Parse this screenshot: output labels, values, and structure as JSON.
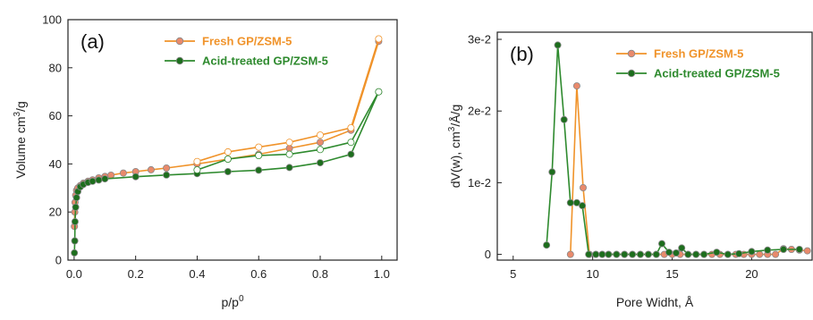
{
  "chart_data": [
    {
      "type": "scatter",
      "panel_label": "(a)",
      "xlabel": "p/p",
      "xlabel_sup": "0",
      "ylabel": "Volume cm",
      "ylabel_sup": "3",
      "ylabel_tail": "/g",
      "xlim": [
        -0.02,
        1.05
      ],
      "ylim": [
        0,
        100
      ],
      "xticks": [
        "0.0",
        "0.2",
        "0.4",
        "0.6",
        "0.8",
        "1.0"
      ],
      "xtick_values": [
        0.0,
        0.2,
        0.4,
        0.6,
        0.8,
        1.0
      ],
      "yticks": [
        "0",
        "20",
        "40",
        "60",
        "80",
        "100"
      ],
      "ytick_values": [
        0,
        20,
        40,
        60,
        80,
        100
      ],
      "legend_position": "top-right",
      "series": [
        {
          "name": "Fresh GP/ZSM-5",
          "color": "#f0932a",
          "marker_fill": "#e98a6c",
          "adsorption": {
            "x": [
              0.001,
              0.002,
              0.003,
              0.005,
              0.008,
              0.012,
              0.02,
              0.03,
              0.045,
              0.06,
              0.08,
              0.1,
              0.12,
              0.16,
              0.2,
              0.25,
              0.3,
              0.4,
              0.5,
              0.6,
              0.7,
              0.8,
              0.9,
              0.99
            ],
            "y": [
              14,
              20,
              24,
              27,
              29,
              30,
              31,
              32,
              32.8,
              33.4,
              34.2,
              34.8,
              35.3,
              36.2,
              36.8,
              37.6,
              38.3,
              40,
              42,
              44,
              46.5,
              49,
              54,
              91
            ]
          },
          "desorption": {
            "x": [
              0.99,
              0.9,
              0.8,
              0.7,
              0.6,
              0.5,
              0.4
            ],
            "y": [
              92,
              55,
              52,
              49,
              47,
              45,
              41
            ]
          }
        },
        {
          "name": "Acid-treated GP/ZSM-5",
          "color": "#2e8a2e",
          "marker_fill": "#1d6e1d",
          "adsorption": {
            "x": [
              0.001,
              0.002,
              0.003,
              0.005,
              0.008,
              0.012,
              0.02,
              0.03,
              0.045,
              0.06,
              0.08,
              0.1,
              0.2,
              0.3,
              0.4,
              0.5,
              0.6,
              0.7,
              0.8,
              0.9,
              0.99
            ],
            "y": [
              3,
              8,
              16,
              22,
              26,
              28.5,
              30.5,
              31.5,
              32.3,
              32.8,
              33.3,
              33.8,
              34.7,
              35.4,
              36,
              36.8,
              37.4,
              38.5,
              40.5,
              44,
              70
            ]
          },
          "desorption": {
            "x": [
              0.99,
              0.9,
              0.8,
              0.7,
              0.6,
              0.5,
              0.4
            ],
            "y": [
              70,
              49,
              46,
              44,
              43.5,
              42,
              37.5
            ]
          }
        }
      ]
    },
    {
      "type": "line",
      "panel_label": "(b)",
      "xlabel": "Pore Widht, Å",
      "ylabel": "dV(w), cm",
      "ylabel_sup": "3",
      "ylabel_tail": "/Å/g",
      "xlim": [
        4,
        23.8
      ],
      "ylim": [
        -0.0008,
        0.031
      ],
      "xticks": [
        "5",
        "10",
        "15",
        "20"
      ],
      "xtick_values": [
        5,
        10,
        15,
        20
      ],
      "yticks": [
        "0",
        "1e-2",
        "2e-2",
        "3e-2"
      ],
      "ytick_values": [
        0,
        0.01,
        0.02,
        0.03
      ],
      "legend_position": "top-right",
      "series": [
        {
          "name": "Fresh GP/ZSM-5",
          "color": "#f0932a",
          "marker_fill": "#e98a6c",
          "x": [
            8.6,
            9.0,
            9.4,
            9.8,
            10.2,
            10.6,
            11.0,
            11.5,
            12.0,
            12.5,
            13.0,
            13.5,
            14.0,
            14.5,
            15.0,
            15.5,
            16.0,
            16.5,
            17.0,
            17.5,
            18.0,
            18.5,
            19.0,
            19.5,
            20.0,
            20.5,
            21.0,
            21.5,
            22.0,
            22.5,
            23.0,
            23.5
          ],
          "y": [
            0.0,
            0.0235,
            0.0093,
            0.0,
            0.0,
            0.0,
            0.0,
            0.0,
            0.0,
            0.0,
            0.0,
            0.0,
            0.0,
            0.0,
            0.0,
            0.0,
            0.0,
            0.0,
            0.0,
            0.0,
            0.0,
            0.0,
            0.0,
            0.0,
            0.0,
            0.0,
            0.0,
            0.0,
            0.0008,
            0.0007,
            0.0006,
            0.0005
          ]
        },
        {
          "name": "Acid-treated GP/ZSM-5",
          "color": "#2e8a2e",
          "marker_fill": "#1d6e1d",
          "x": [
            7.1,
            7.45,
            7.8,
            8.2,
            8.6,
            9.0,
            9.35,
            9.75,
            10.2,
            10.6,
            11.0,
            11.5,
            12.0,
            12.5,
            13.0,
            13.5,
            14.0,
            14.35,
            14.8,
            15.25,
            15.6,
            16.0,
            16.5,
            17.0,
            17.8,
            18.5,
            19.2,
            20.0,
            21.0,
            22.0,
            23.0
          ],
          "y": [
            0.0013,
            0.0115,
            0.0292,
            0.0188,
            0.0072,
            0.0072,
            0.0068,
            0.0,
            0.0,
            0.0,
            0.0,
            0.0,
            0.0,
            0.0,
            0.0,
            0.0,
            0.0,
            0.0015,
            0.0003,
            0.0002,
            0.0009,
            0.0,
            0.0,
            0.0,
            0.0003,
            0.0,
            0.0001,
            0.0004,
            0.0006,
            0.0007,
            0.0007
          ]
        }
      ]
    }
  ]
}
